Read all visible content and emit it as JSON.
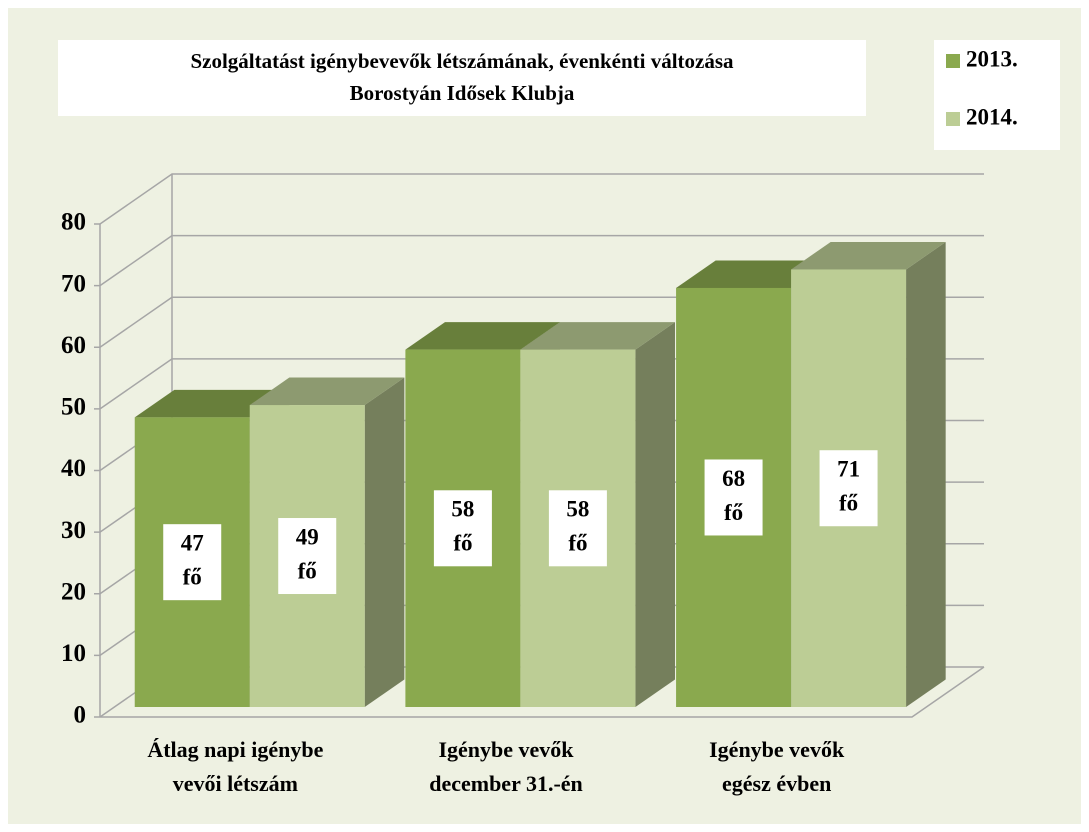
{
  "chart_data": {
    "type": "bar3d",
    "title": "Szolgáltatást igénybevevők létszámának, évenkénti változása",
    "subtitle": "Borostyán Idősek Klubja",
    "categories": [
      [
        "Átlag napi igénybe",
        "vevői létszám"
      ],
      [
        "Igénybe vevők",
        "december 31.-én"
      ],
      [
        "Igénybe vevők",
        "egész évben"
      ]
    ],
    "series": [
      {
        "name": "2013.",
        "color": "#8aa94e",
        "values": [
          47,
          58,
          68
        ],
        "value_labels": [
          [
            "47",
            "fő"
          ],
          [
            "58",
            "fő"
          ],
          [
            "68",
            "fő"
          ]
        ]
      },
      {
        "name": "2014.",
        "color": "#bccd95",
        "values": [
          49,
          58,
          71
        ],
        "value_labels": [
          [
            "49",
            "fő"
          ],
          [
            "58",
            "fő"
          ],
          [
            "71",
            "fő"
          ]
        ]
      }
    ],
    "ylim": [
      0,
      80
    ],
    "yticks": [
      0,
      10,
      20,
      30,
      40,
      50,
      60,
      70,
      80
    ],
    "grid": true,
    "legend": "top-right"
  }
}
